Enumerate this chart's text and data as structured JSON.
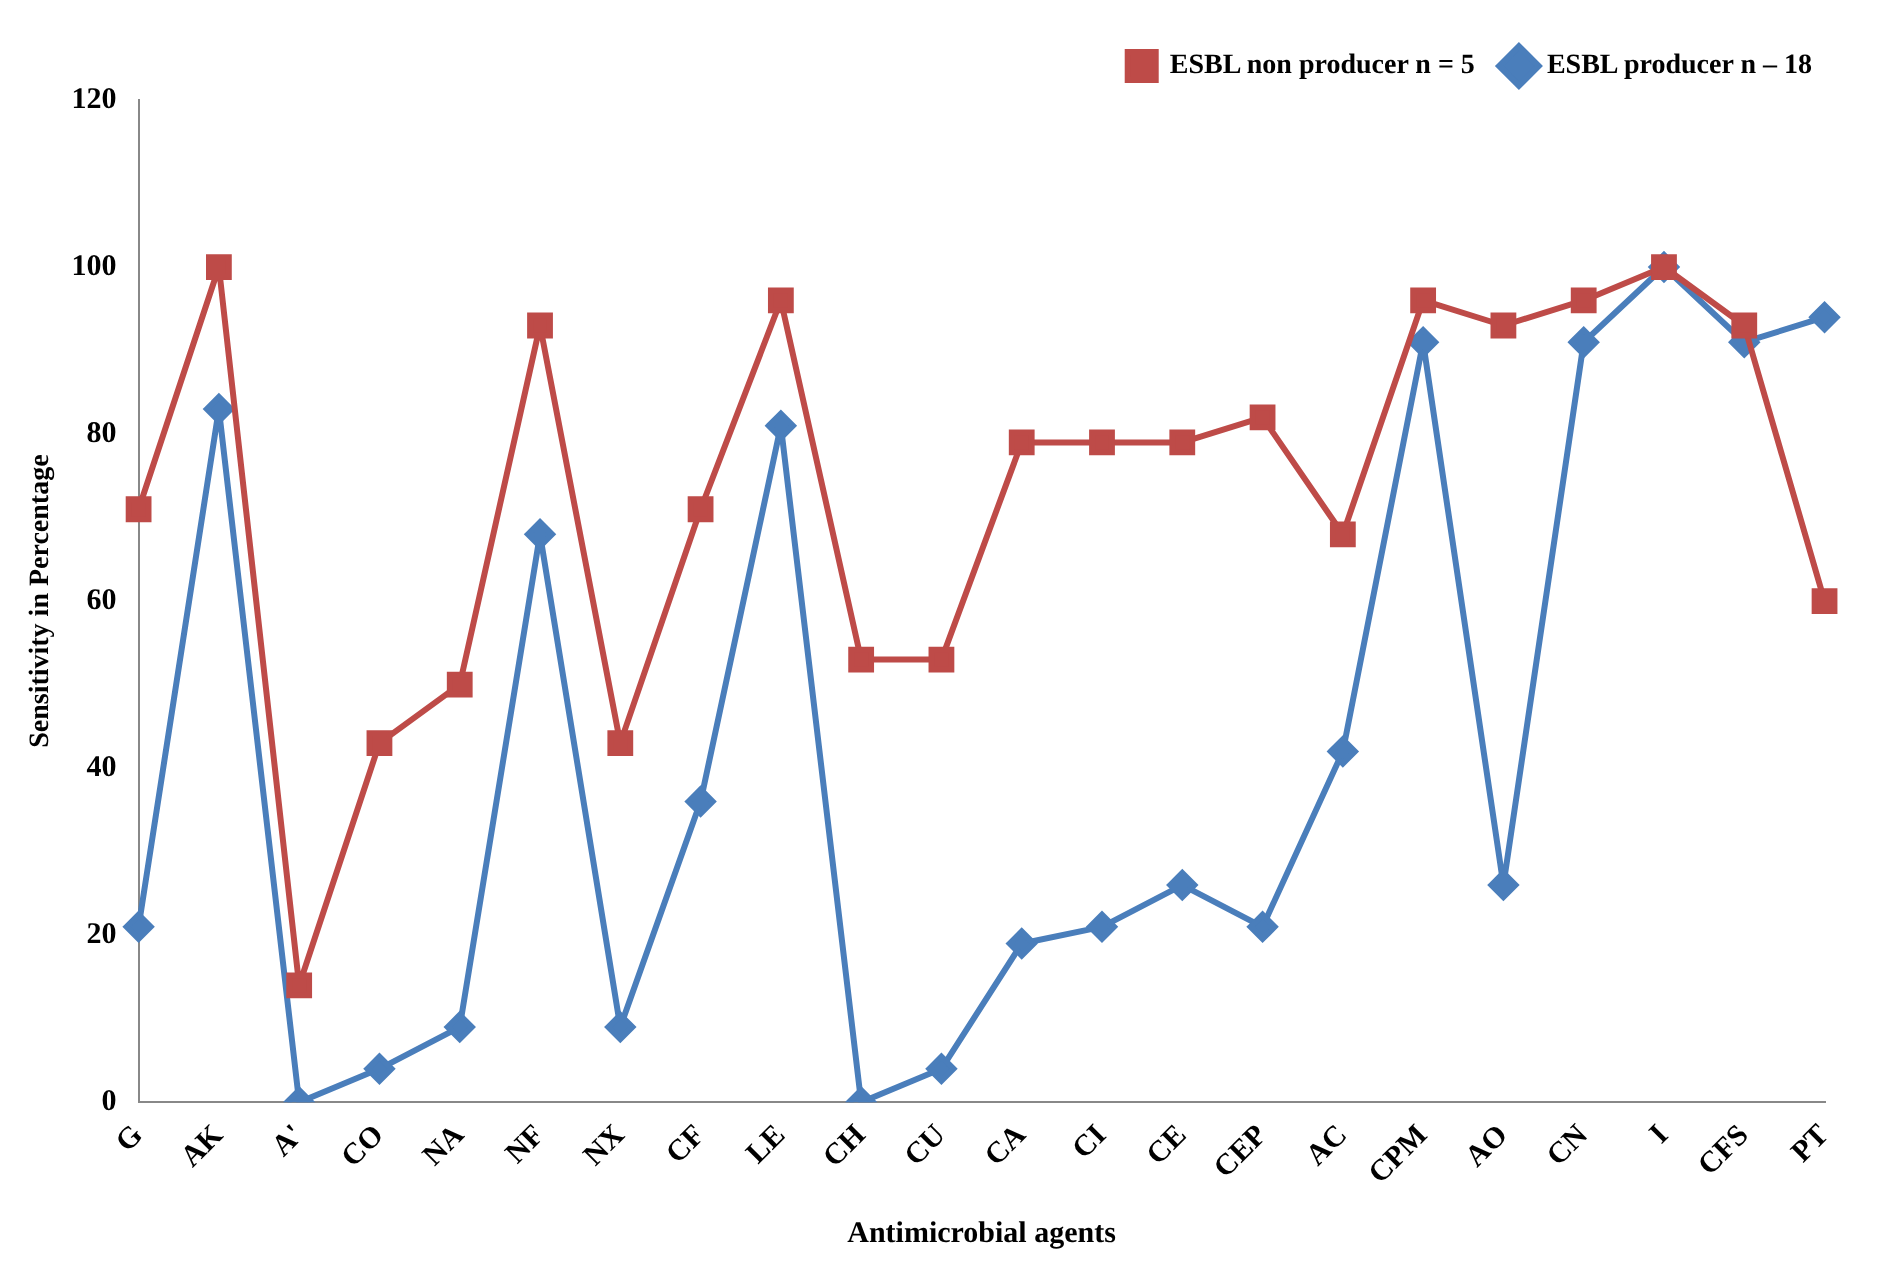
{
  "chart_data": {
    "type": "line",
    "xlabel": "Antimicrobial agents",
    "ylabel": "Sensitivity in Percentage",
    "categories": [
      "G",
      "AK",
      "A'",
      "CO",
      "NA",
      "NF",
      "NX",
      "CF",
      "LE",
      "CH",
      "CU",
      "CA",
      "CI",
      "CE",
      "CEP",
      "AC",
      "CPM",
      "AO",
      "CN",
      "I",
      "CFS",
      "PT"
    ],
    "series": [
      {
        "name": "ESBL producer n – 18",
        "color": "#4a7ebb",
        "marker": "diamond",
        "values": [
          21,
          83,
          0,
          4,
          9,
          68,
          9,
          36,
          81,
          0,
          4,
          19,
          21,
          26,
          21,
          42,
          91,
          26,
          91,
          100,
          91,
          94
        ]
      },
      {
        "name": "ESBL non producer n = 5",
        "color": "#be4b48",
        "marker": "square",
        "values": [
          71,
          100,
          14,
          43,
          50,
          93,
          43,
          71,
          96,
          53,
          53,
          79,
          79,
          79,
          82,
          68,
          96,
          93,
          96,
          100,
          93,
          60
        ]
      }
    ],
    "ylim": [
      0,
      120
    ],
    "yticks": [
      0,
      20,
      40,
      60,
      80,
      100,
      120
    ],
    "grid": false,
    "legend": "top right",
    "line_style": "solid"
  }
}
